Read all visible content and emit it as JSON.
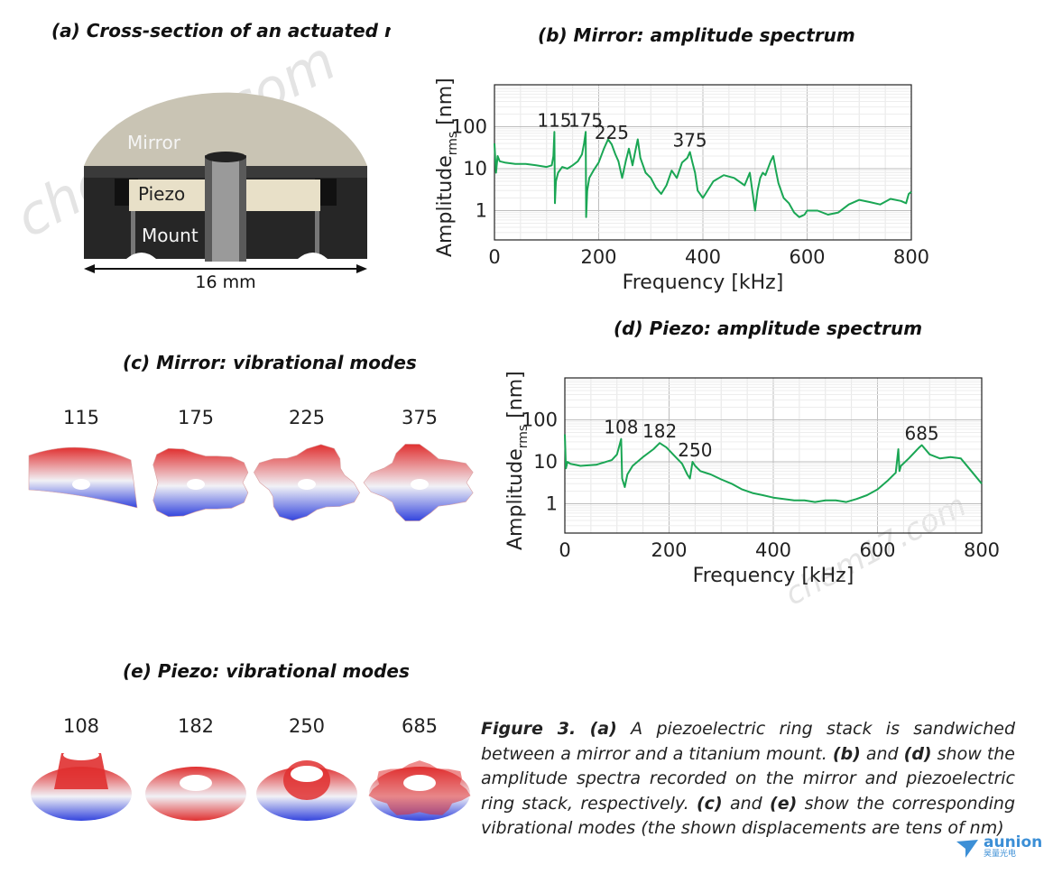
{
  "panels": {
    "a": {
      "title": "(a) Cross-section of an actuated mirror",
      "labels": {
        "mirror": "Mirror",
        "piezo": "Piezo",
        "mount": "Mount",
        "dimension": "16 mm"
      }
    },
    "b": {
      "title": "(b) Mirror: amplitude spectrum"
    },
    "c": {
      "title": "(c) Mirror: vibrational modes",
      "modes": [
        "115",
        "175",
        "225",
        "375"
      ]
    },
    "d": {
      "title": "(d) Piezo: amplitude spectrum"
    },
    "e": {
      "title": "(e) Piezo: vibrational modes",
      "modes": [
        "108",
        "182",
        "250",
        "685"
      ]
    }
  },
  "caption": {
    "label": "Figure 3.",
    "a": "(a)",
    "t1": " A piezoelectric ring stack is sandwiched between a mirror and a titanium mount. ",
    "b": "(b)",
    "t2": " and ",
    "d": "(d)",
    "t3": " show the amplitude spectra recorded on the mirror and piezoelectric ring stack, respectively.  ",
    "c": "(c)",
    "t4": " and ",
    "e": "(e)",
    "t5": " show the corresponding vibrational modes (the shown displacements are tens of nm)"
  },
  "watermark": {
    "text": "chem17.com",
    "logo": "aunion",
    "logo_sub": "昊量光电"
  },
  "colors": {
    "curve": "#1aa654",
    "mode_red": "#e03030",
    "mode_blue": "#3344dd",
    "mirror": "#c9c4b4",
    "mount": "#2a2a2a",
    "piezo": "#e8e0c8"
  },
  "chart_data": [
    {
      "id": "b",
      "type": "line",
      "title": "(b) Mirror: amplitude spectrum",
      "xlabel": "Frequency [kHz]",
      "ylabel": "Amplitude",
      "ylabel_sub": "rms",
      "ylabel_unit": " [nm]",
      "xscale": "linear",
      "yscale": "log",
      "xlim": [
        0,
        800
      ],
      "ylim": [
        0.2,
        1000
      ],
      "xticks": [
        "0",
        "200",
        "400",
        "600",
        "800"
      ],
      "yticks": [
        "1",
        "10",
        "100"
      ],
      "grid": true,
      "annotations": [
        {
          "x": 115,
          "text": "115"
        },
        {
          "x": 175,
          "text": "175"
        },
        {
          "x": 225,
          "text": "225"
        },
        {
          "x": 375,
          "text": "375"
        }
      ],
      "series": [
        {
          "x": [
            0,
            3,
            6,
            10,
            20,
            40,
            60,
            80,
            100,
            110,
            113,
            115,
            116,
            118,
            122,
            130,
            140,
            150,
            160,
            168,
            172,
            175,
            176,
            178,
            182,
            190,
            200,
            210,
            218,
            225,
            232,
            238,
            245,
            252,
            258,
            265,
            270,
            275,
            280,
            290,
            300,
            310,
            320,
            330,
            340,
            350,
            360,
            370,
            375,
            380,
            385,
            390,
            400,
            420,
            440,
            460,
            480,
            490,
            500,
            505,
            510,
            515,
            520,
            530,
            535,
            540,
            545,
            555,
            565,
            575,
            585,
            595,
            600,
            620,
            640,
            660,
            680,
            700,
            720,
            740,
            760,
            780,
            790,
            795,
            800
          ],
          "y": [
            40,
            8,
            20,
            15,
            14,
            13,
            13,
            12,
            11,
            12,
            20,
            75,
            1.5,
            5,
            8,
            11,
            10,
            12,
            15,
            22,
            40,
            75,
            0.7,
            3,
            6,
            9,
            14,
            30,
            50,
            38,
            22,
            15,
            6,
            15,
            30,
            12,
            25,
            50,
            18,
            8,
            6,
            3.5,
            2.5,
            4,
            9,
            6,
            14,
            18,
            25,
            14,
            8,
            3,
            2,
            5,
            7,
            6,
            4,
            8,
            1.0,
            3,
            6,
            8,
            7,
            15,
            20,
            9,
            4.5,
            2,
            1.5,
            0.9,
            0.7,
            0.8,
            1.0,
            1.0,
            0.8,
            0.9,
            1.4,
            1.8,
            1.6,
            1.4,
            1.9,
            1.7,
            1.5,
            2.5,
            2.8
          ]
        }
      ]
    },
    {
      "id": "d",
      "type": "line",
      "title": "(d) Piezo: amplitude spectrum",
      "xlabel": "Frequency [kHz]",
      "ylabel": "Amplitude",
      "ylabel_sub": "rms",
      "ylabel_unit": " [nm]",
      "xscale": "linear",
      "yscale": "log",
      "xlim": [
        0,
        800
      ],
      "ylim": [
        0.2,
        1000
      ],
      "xticks": [
        "0",
        "200",
        "400",
        "600",
        "800"
      ],
      "yticks": [
        "1",
        "10",
        "100"
      ],
      "grid": true,
      "annotations": [
        {
          "x": 108,
          "text": "108"
        },
        {
          "x": 182,
          "text": "182"
        },
        {
          "x": 250,
          "text": "250"
        },
        {
          "x": 685,
          "text": "685"
        }
      ],
      "series": [
        {
          "x": [
            0,
            2,
            5,
            10,
            30,
            60,
            90,
            100,
            105,
            108,
            110,
            115,
            120,
            130,
            150,
            170,
            182,
            195,
            210,
            225,
            235,
            240,
            245,
            250,
            260,
            280,
            300,
            320,
            340,
            360,
            380,
            400,
            420,
            440,
            460,
            480,
            500,
            520,
            540,
            560,
            580,
            600,
            620,
            635,
            640,
            642,
            645,
            660,
            680,
            685,
            700,
            720,
            740,
            760,
            780,
            800
          ],
          "y": [
            45,
            7,
            10,
            9,
            8,
            8.5,
            11,
            15,
            25,
            35,
            4,
            2.5,
            5,
            8,
            13,
            20,
            28,
            22,
            14,
            9,
            5,
            4,
            10,
            8,
            6,
            5,
            3.8,
            3,
            2.2,
            1.8,
            1.6,
            1.4,
            1.3,
            1.2,
            1.2,
            1.1,
            1.2,
            1.2,
            1.1,
            1.3,
            1.6,
            2.2,
            3.6,
            5.5,
            20,
            6,
            8,
            12,
            22,
            25,
            15,
            12,
            13,
            12,
            6,
            3
          ]
        }
      ]
    }
  ]
}
